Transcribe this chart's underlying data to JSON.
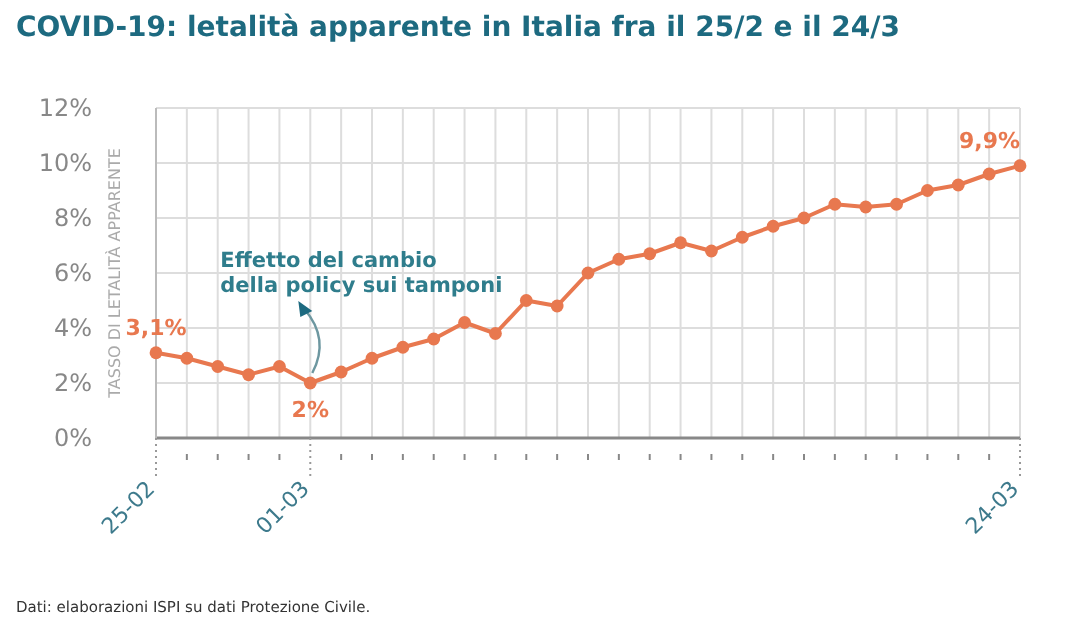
{
  "chart_data": {
    "type": "line",
    "title": "COVID-19: letalità apparente in Italia fra il 25/2 e il 24/3",
    "ylabel": "TASSO DI LETALITÀ APPARENTE",
    "x": [
      "--02-25",
      "--02-26",
      "--02-27",
      "--02-28",
      "--02-29",
      "--03-01",
      "--03-02",
      "--03-03",
      "--03-04",
      "--03-05",
      "--03-06",
      "--03-07",
      "--03-08",
      "--03-09",
      "--03-10",
      "--03-11",
      "--03-12",
      "--03-13",
      "--03-14",
      "--03-15",
      "--03-16",
      "--03-17",
      "--03-18",
      "--03-19",
      "--03-20",
      "--03-21",
      "--03-22",
      "--03-23",
      "--03-24"
    ],
    "series": [
      {
        "color": "#e8784f",
        "values": [
          3.1,
          2.9,
          2.6,
          2.3,
          2.6,
          2.0,
          2.4,
          2.9,
          3.3,
          3.6,
          4.2,
          3.8,
          5.0,
          4.8,
          6.0,
          6.5,
          6.7,
          7.1,
          6.8,
          7.3,
          7.7,
          8.0,
          8.5,
          8.4,
          8.5,
          9.0,
          9.2,
          9.6,
          9.9
        ],
        "value_labels": [
          "3,1%",
          null,
          null,
          null,
          null,
          "2%",
          null,
          null,
          null,
          null,
          null,
          null,
          null,
          null,
          null,
          null,
          null,
          null,
          null,
          null,
          null,
          null,
          null,
          null,
          null,
          null,
          null,
          null,
          "9,9%"
        ]
      }
    ],
    "xlim": [
      "--02-25",
      "--03-24"
    ],
    "xticks": [
      {
        "value": "--02-25",
        "label": "25-02"
      },
      {
        "value": "--02-26",
        "label": null
      },
      {
        "value": "--02-27",
        "label": null
      },
      {
        "value": "--02-28",
        "label": null
      },
      {
        "value": "--02-29",
        "label": null
      },
      {
        "value": "--03-01",
        "label": "01-03"
      },
      {
        "value": "--03-02",
        "label": null
      },
      {
        "value": "--03-03",
        "label": null
      },
      {
        "value": "--03-04",
        "label": null
      },
      {
        "value": "--03-05",
        "label": null
      },
      {
        "value": "--03-06",
        "label": null
      },
      {
        "value": "--03-07",
        "label": null
      },
      {
        "value": "--03-08",
        "label": null
      },
      {
        "value": "--03-09",
        "label": null
      },
      {
        "value": "--03-10",
        "label": null
      },
      {
        "value": "--03-11",
        "label": null
      },
      {
        "value": "--03-12",
        "label": null
      },
      {
        "value": "--03-13",
        "label": null
      },
      {
        "value": "--03-14",
        "label": null
      },
      {
        "value": "--03-15",
        "label": null
      },
      {
        "value": "--03-16",
        "label": null
      },
      {
        "value": "--03-17",
        "label": null
      },
      {
        "value": "--03-18",
        "label": null
      },
      {
        "value": "--03-19",
        "label": null
      },
      {
        "value": "--03-20",
        "label": null
      },
      {
        "value": "--03-21",
        "label": null
      },
      {
        "value": "--03-22",
        "label": null
      },
      {
        "value": "--03-23",
        "label": null
      },
      {
        "value": "--03-24",
        "label": "24-03"
      }
    ],
    "ylim": [
      0,
      12
    ],
    "yticks": [
      {
        "value": 0,
        "label": "0%"
      },
      {
        "value": 2,
        "label": "2%"
      },
      {
        "value": 4,
        "label": "4%"
      },
      {
        "value": 6,
        "label": "6%"
      },
      {
        "value": 8,
        "label": "8%"
      },
      {
        "value": 10,
        "label": "10%"
      },
      {
        "value": 12,
        "label": "12%"
      }
    ],
    "grid": true,
    "marker": "circle",
    "line_style": "solid",
    "annotations": [
      {
        "text": "Effetto del cambio della policy sui tamponi",
        "x": "--03-01",
        "y": 2.0
      },
      "Dati: elaborazioni ISPI su dati Protezione Civile."
    ]
  }
}
